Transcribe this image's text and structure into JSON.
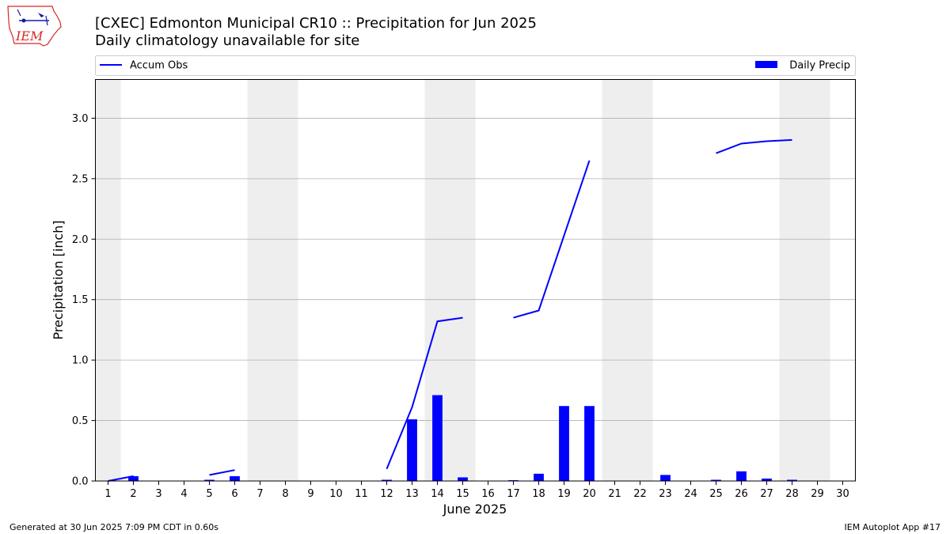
{
  "logo": {
    "text": "IEM",
    "color": "#d62728"
  },
  "header": {
    "title": "[CXEC] Edmonton Municipal CR10 :: Precipitation for Jun 2025",
    "subtitle": "Daily climatology unavailable for site"
  },
  "legend": {
    "line_label": "Accum Obs",
    "bar_label": "Daily Precip"
  },
  "footer": {
    "left": "Generated at 30 Jun 2025 7:09 PM CDT in 0.60s",
    "right": "IEM Autoplot App #17"
  },
  "colors": {
    "series": "#0000ff",
    "weekend_shade": "#eeeeee",
    "grid": "#b0b0b0"
  },
  "chart_data": {
    "type": "bar",
    "title": "[CXEC] Edmonton Municipal CR10 :: Precipitation for Jun 2025",
    "subtitle": "Daily climatology unavailable for site",
    "xlabel": "June 2025",
    "ylabel": "Precipitation [inch]",
    "xlim": [
      0.5,
      30.5
    ],
    "ylim": [
      0,
      3.32
    ],
    "x_ticks": [
      1,
      2,
      3,
      4,
      5,
      6,
      7,
      8,
      9,
      10,
      11,
      12,
      13,
      14,
      15,
      16,
      17,
      18,
      19,
      20,
      21,
      22,
      23,
      24,
      25,
      26,
      27,
      28,
      29,
      30
    ],
    "y_ticks": [
      0.0,
      0.5,
      1.0,
      1.5,
      2.0,
      2.5,
      3.0
    ],
    "y_tick_labels": [
      "0.0",
      "0.5",
      "1.0",
      "1.5",
      "2.0",
      "2.5",
      "3.0"
    ],
    "grid": "horizontal",
    "legend_position": "top",
    "shaded_days": [
      1,
      7,
      8,
      14,
      15,
      21,
      22,
      28,
      29
    ],
    "series": [
      {
        "name": "Daily Precip",
        "type": "bar",
        "days": [
          2,
          5,
          6,
          12,
          13,
          14,
          15,
          17,
          18,
          19,
          20,
          23,
          25,
          26,
          27,
          28
        ],
        "values": [
          0.04,
          0.01,
          0.04,
          0.01,
          0.51,
          0.71,
          0.03,
          0.005,
          0.06,
          0.62,
          0.62,
          0.05,
          0.01,
          0.08,
          0.02,
          0.01
        ]
      },
      {
        "name": "Accum Obs",
        "type": "line",
        "segments": [
          [
            [
              1,
              0.0
            ],
            [
              2,
              0.04
            ]
          ],
          [
            [
              5,
              0.05
            ],
            [
              6,
              0.09
            ]
          ],
          [
            [
              12,
              0.1
            ],
            [
              13,
              0.61
            ],
            [
              14,
              1.32
            ],
            [
              15,
              1.35
            ]
          ],
          [
            [
              17,
              1.35
            ],
            [
              18,
              1.41
            ],
            [
              19,
              2.03
            ],
            [
              20,
              2.65
            ]
          ],
          [
            [
              25,
              2.71
            ],
            [
              26,
              2.79
            ],
            [
              27,
              2.81
            ],
            [
              28,
              2.82
            ]
          ]
        ]
      }
    ]
  }
}
